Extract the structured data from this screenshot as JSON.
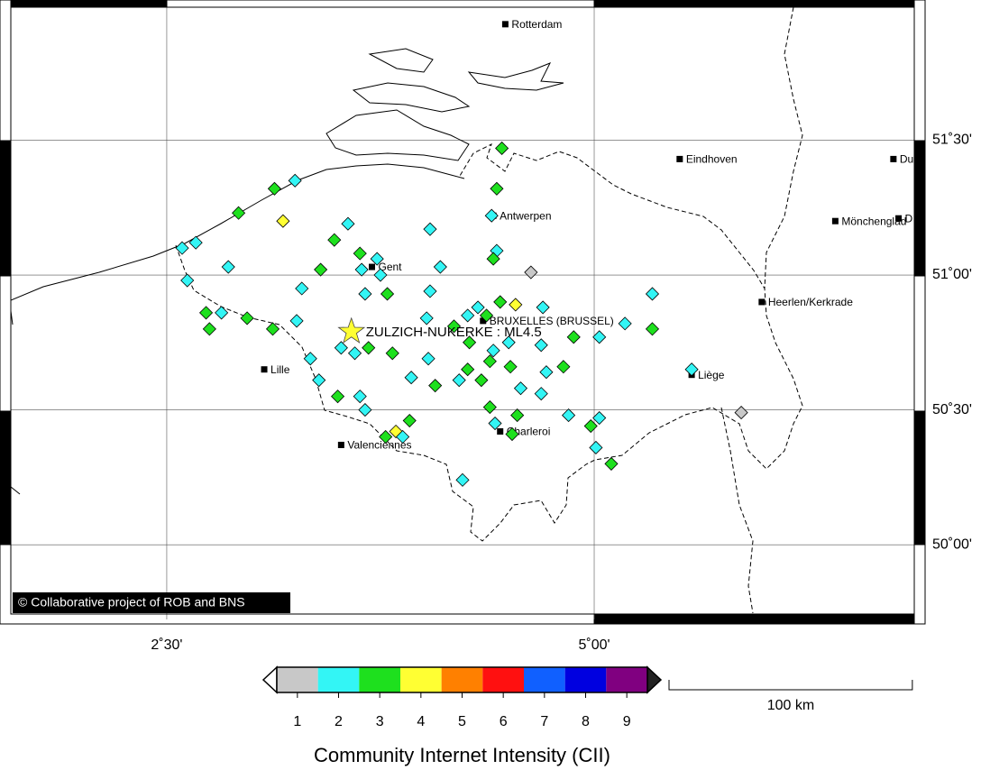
{
  "map": {
    "xlim": [
      1.588,
      6.872
    ],
    "ylim": [
      49.723,
      51.993
    ],
    "xticks": [
      {
        "value": 2.5,
        "label": "2˚30'"
      },
      {
        "value": 5.0,
        "label": "5˚00'"
      }
    ],
    "yticks": [
      {
        "value": 50.0,
        "label": "50˚00'"
      },
      {
        "value": 50.5,
        "label": "50˚30'"
      },
      {
        "value": 51.0,
        "label": "51˚00'"
      },
      {
        "value": 51.5,
        "label": "51˚30'"
      }
    ],
    "grid": true
  },
  "credit": "© Collaborative project of ROB and BNS",
  "epicenter": {
    "label": "ZULZICH-NUKERKE : ML4.5",
    "lon": 3.58,
    "lat": 50.79,
    "color": "#ffff33"
  },
  "cities": [
    {
      "name": "Rotterdam",
      "lon": 4.48,
      "lat": 51.93
    },
    {
      "name": "Eindhoven",
      "lon": 5.5,
      "lat": 51.43
    },
    {
      "name": "Du",
      "lon": 6.75,
      "lat": 51.43
    },
    {
      "name": "Mönchenglad",
      "lon": 6.41,
      "lat": 51.2
    },
    {
      "name": "D",
      "lon": 6.78,
      "lat": 51.21
    },
    {
      "name": "Antwerpen",
      "lon": 4.41,
      "lat": 51.22
    },
    {
      "name": "Gent",
      "lon": 3.7,
      "lat": 51.03
    },
    {
      "name": "BRUXELLES (BRUSSEL)",
      "lon": 4.35,
      "lat": 50.83
    },
    {
      "name": "Heerlen/Kerkrade",
      "lon": 5.98,
      "lat": 50.9
    },
    {
      "name": "Lille",
      "lon": 3.07,
      "lat": 50.65
    },
    {
      "name": "Liège",
      "lon": 5.57,
      "lat": 50.63
    },
    {
      "name": "Charleroi",
      "lon": 4.45,
      "lat": 50.42
    },
    {
      "name": "Valenciennes",
      "lon": 3.52,
      "lat": 50.37
    }
  ],
  "points": [
    {
      "lon": 4.46,
      "lat": 51.47,
      "cii": 3
    },
    {
      "lon": 3.25,
      "lat": 51.35,
      "cii": 2
    },
    {
      "lon": 3.13,
      "lat": 51.32,
      "cii": 3
    },
    {
      "lon": 4.43,
      "lat": 51.32,
      "cii": 3
    },
    {
      "lon": 2.92,
      "lat": 51.23,
      "cii": 3
    },
    {
      "lon": 3.18,
      "lat": 51.2,
      "cii": 4
    },
    {
      "lon": 4.4,
      "lat": 51.22,
      "cii": 2
    },
    {
      "lon": 3.56,
      "lat": 51.19,
      "cii": 2
    },
    {
      "lon": 4.04,
      "lat": 51.17,
      "cii": 2
    },
    {
      "lon": 3.48,
      "lat": 51.13,
      "cii": 3
    },
    {
      "lon": 2.67,
      "lat": 51.12,
      "cii": 2
    },
    {
      "lon": 2.59,
      "lat": 51.1,
      "cii": 2
    },
    {
      "lon": 4.43,
      "lat": 51.09,
      "cii": 2
    },
    {
      "lon": 4.41,
      "lat": 51.06,
      "cii": 3
    },
    {
      "lon": 3.63,
      "lat": 51.08,
      "cii": 3
    },
    {
      "lon": 3.73,
      "lat": 51.06,
      "cii": 2
    },
    {
      "lon": 2.86,
      "lat": 51.03,
      "cii": 2
    },
    {
      "lon": 3.4,
      "lat": 51.02,
      "cii": 3
    },
    {
      "lon": 4.1,
      "lat": 51.03,
      "cii": 2
    },
    {
      "lon": 3.64,
      "lat": 51.02,
      "cii": 2
    },
    {
      "lon": 3.75,
      "lat": 51.0,
      "cii": 2
    },
    {
      "lon": 4.63,
      "lat": 51.01,
      "cii": 1
    },
    {
      "lon": 2.62,
      "lat": 50.98,
      "cii": 2
    },
    {
      "lon": 3.29,
      "lat": 50.95,
      "cii": 2
    },
    {
      "lon": 3.66,
      "lat": 50.93,
      "cii": 2
    },
    {
      "lon": 3.79,
      "lat": 50.93,
      "cii": 3
    },
    {
      "lon": 4.04,
      "lat": 50.94,
      "cii": 2
    },
    {
      "lon": 5.34,
      "lat": 50.93,
      "cii": 2
    },
    {
      "lon": 4.45,
      "lat": 50.9,
      "cii": 3
    },
    {
      "lon": 4.54,
      "lat": 50.89,
      "cii": 4
    },
    {
      "lon": 4.7,
      "lat": 50.88,
      "cii": 2
    },
    {
      "lon": 4.32,
      "lat": 50.88,
      "cii": 2
    },
    {
      "lon": 4.37,
      "lat": 50.85,
      "cii": 3
    },
    {
      "lon": 2.73,
      "lat": 50.86,
      "cii": 3
    },
    {
      "lon": 2.82,
      "lat": 50.86,
      "cii": 2
    },
    {
      "lon": 2.97,
      "lat": 50.84,
      "cii": 3
    },
    {
      "lon": 3.26,
      "lat": 50.83,
      "cii": 2
    },
    {
      "lon": 4.02,
      "lat": 50.84,
      "cii": 2
    },
    {
      "lon": 4.26,
      "lat": 50.85,
      "cii": 2
    },
    {
      "lon": 5.18,
      "lat": 50.82,
      "cii": 2
    },
    {
      "lon": 5.34,
      "lat": 50.8,
      "cii": 3
    },
    {
      "lon": 2.75,
      "lat": 50.8,
      "cii": 3
    },
    {
      "lon": 3.12,
      "lat": 50.8,
      "cii": 3
    },
    {
      "lon": 4.18,
      "lat": 50.81,
      "cii": 3
    },
    {
      "lon": 4.88,
      "lat": 50.77,
      "cii": 3
    },
    {
      "lon": 5.03,
      "lat": 50.77,
      "cii": 2
    },
    {
      "lon": 4.27,
      "lat": 50.75,
      "cii": 3
    },
    {
      "lon": 4.5,
      "lat": 50.75,
      "cii": 2
    },
    {
      "lon": 4.69,
      "lat": 50.74,
      "cii": 2
    },
    {
      "lon": 3.52,
      "lat": 50.73,
      "cii": 2
    },
    {
      "lon": 3.6,
      "lat": 50.71,
      "cii": 2
    },
    {
      "lon": 3.68,
      "lat": 50.73,
      "cii": 3
    },
    {
      "lon": 3.82,
      "lat": 50.71,
      "cii": 3
    },
    {
      "lon": 4.03,
      "lat": 50.69,
      "cii": 2
    },
    {
      "lon": 4.41,
      "lat": 50.72,
      "cii": 2
    },
    {
      "lon": 4.39,
      "lat": 50.68,
      "cii": 3
    },
    {
      "lon": 3.34,
      "lat": 50.69,
      "cii": 2
    },
    {
      "lon": 4.26,
      "lat": 50.65,
      "cii": 3
    },
    {
      "lon": 4.51,
      "lat": 50.66,
      "cii": 3
    },
    {
      "lon": 4.72,
      "lat": 50.64,
      "cii": 2
    },
    {
      "lon": 4.82,
      "lat": 50.66,
      "cii": 3
    },
    {
      "lon": 5.57,
      "lat": 50.65,
      "cii": 2
    },
    {
      "lon": 3.39,
      "lat": 50.61,
      "cii": 2
    },
    {
      "lon": 3.93,
      "lat": 50.62,
      "cii": 2
    },
    {
      "lon": 4.34,
      "lat": 50.61,
      "cii": 3
    },
    {
      "lon": 4.21,
      "lat": 50.61,
      "cii": 2
    },
    {
      "lon": 4.07,
      "lat": 50.59,
      "cii": 3
    },
    {
      "lon": 4.57,
      "lat": 50.58,
      "cii": 2
    },
    {
      "lon": 4.69,
      "lat": 50.56,
      "cii": 2
    },
    {
      "lon": 3.5,
      "lat": 50.55,
      "cii": 3
    },
    {
      "lon": 3.63,
      "lat": 50.55,
      "cii": 2
    },
    {
      "lon": 3.66,
      "lat": 50.5,
      "cii": 2
    },
    {
      "lon": 4.39,
      "lat": 50.51,
      "cii": 3
    },
    {
      "lon": 5.86,
      "lat": 50.49,
      "cii": 1
    },
    {
      "lon": 4.55,
      "lat": 50.48,
      "cii": 3
    },
    {
      "lon": 4.85,
      "lat": 50.48,
      "cii": 2
    },
    {
      "lon": 5.03,
      "lat": 50.47,
      "cii": 2
    },
    {
      "lon": 3.92,
      "lat": 50.46,
      "cii": 3
    },
    {
      "lon": 4.42,
      "lat": 50.45,
      "cii": 2
    },
    {
      "lon": 4.98,
      "lat": 50.44,
      "cii": 3
    },
    {
      "lon": 3.84,
      "lat": 50.42,
      "cii": 4
    },
    {
      "lon": 3.78,
      "lat": 50.4,
      "cii": 3
    },
    {
      "lon": 3.88,
      "lat": 50.4,
      "cii": 2
    },
    {
      "lon": 4.52,
      "lat": 50.41,
      "cii": 3
    },
    {
      "lon": 5.01,
      "lat": 50.36,
      "cii": 2
    },
    {
      "lon": 5.1,
      "lat": 50.3,
      "cii": 3
    },
    {
      "lon": 4.23,
      "lat": 50.24,
      "cii": 2
    }
  ],
  "legend": {
    "title": "Community Internet Intensity (CII)",
    "levels": [
      {
        "value": 1,
        "color": "#c8c8c8"
      },
      {
        "value": 2,
        "color": "#33f5f5"
      },
      {
        "value": 3,
        "color": "#1ee01e"
      },
      {
        "value": 4,
        "color": "#ffff33"
      },
      {
        "value": 5,
        "color": "#ff8000"
      },
      {
        "value": 6,
        "color": "#ff1010"
      },
      {
        "value": 7,
        "color": "#1060ff"
      },
      {
        "value": 8,
        "color": "#0000e0"
      },
      {
        "value": 9,
        "color": "#800080"
      }
    ]
  },
  "scale": {
    "km": 100,
    "label": "100 km"
  }
}
